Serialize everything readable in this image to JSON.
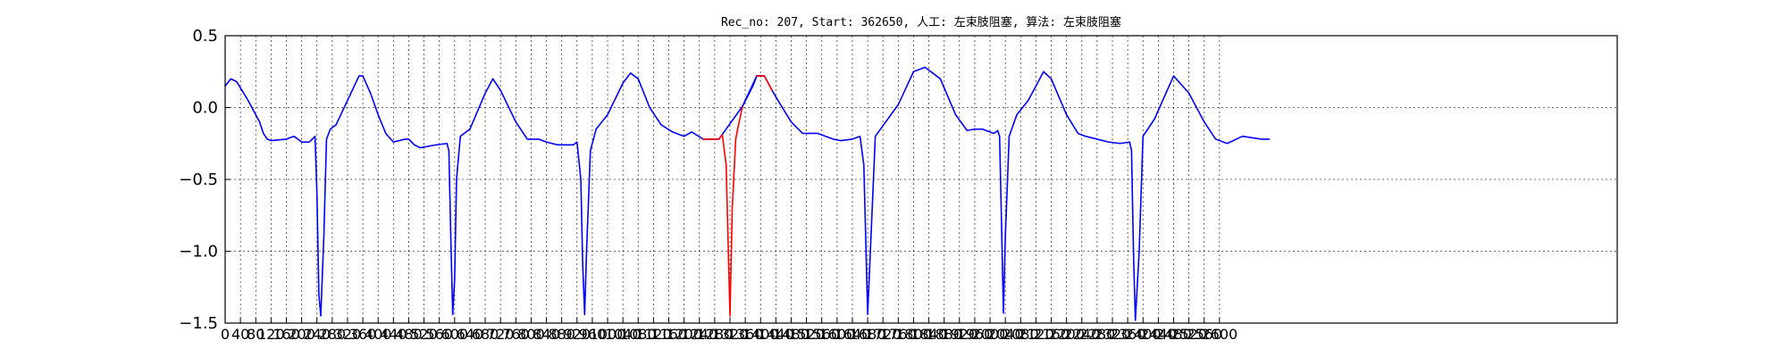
{
  "chart_data": {
    "type": "line",
    "title": "Rec_no: 207, Start: 362650, 人工: 左束肢阻塞, 算法: 左束肢阻塞",
    "xlabel": "",
    "ylabel": "",
    "xlim": [
      0,
      3640
    ],
    "ylim": [
      -1.5,
      0.5
    ],
    "y_ticks": [
      0.5,
      0.0,
      -0.5,
      -1.0,
      -1.5
    ],
    "y_tick_labels": [
      "0.5",
      "0.0",
      "−0.5",
      "−1.0",
      "−1.5"
    ],
    "x_ticks": [
      0,
      40,
      80,
      120,
      160,
      200,
      240,
      280,
      320,
      360,
      400,
      440,
      480,
      520,
      560,
      600,
      640,
      680,
      720,
      760,
      800,
      840,
      880,
      920,
      960,
      1000,
      1040,
      1080,
      1120,
      1160,
      1200,
      1240,
      1280,
      1320,
      1360,
      1400,
      1440,
      1480,
      1520,
      1560,
      1600,
      1640,
      1680,
      1720,
      1760,
      1800,
      1840,
      1880,
      1920,
      1960,
      2000,
      2040,
      2080,
      2120,
      2160,
      2200,
      2240,
      2280,
      2320,
      2360,
      2400,
      2440,
      2480,
      2520,
      2560,
      2600
    ],
    "x_tick_labels": [
      "0",
      "40",
      "80",
      "120",
      "160",
      "200",
      "240",
      "280",
      "320",
      "360",
      "400",
      "440",
      "480",
      "520",
      "560",
      "600",
      "640",
      "680",
      "720",
      "760",
      "800",
      "840",
      "880",
      "920",
      "960",
      "1000",
      "1040",
      "1080",
      "1120",
      "1160",
      "1200",
      "1240",
      "1280",
      "1320",
      "1360",
      "1400",
      "1440",
      "1480",
      "1520",
      "1560",
      "1600",
      "1640",
      "1680",
      "1720",
      "1760",
      "1800",
      "1840",
      "1880",
      "1920",
      "1960",
      "2000",
      "2040",
      "2080",
      "2120",
      "2160",
      "2200",
      "2240",
      "2280",
      "2320",
      "2360",
      "2400",
      "2440",
      "2480",
      "2520",
      "2560",
      "2600"
    ],
    "grid": true,
    "series": [
      {
        "color": "#0000ff",
        "x": [
          0,
          15,
          30,
          60,
          90,
          100,
          110,
          120,
          160,
          180,
          200,
          220,
          235,
          240,
          245,
          250,
          258,
          265,
          275,
          290,
          320,
          350,
          360,
          380,
          400,
          420,
          440,
          470,
          480,
          495,
          510,
          550,
          580,
          585,
          590,
          595,
          600,
          605,
          615,
          640,
          680,
          700,
          720,
          760,
          790,
          820,
          840,
          870,
          910,
          920,
          930,
          935,
          940,
          945,
          955,
          970,
          1000,
          1040,
          1060,
          1080,
          1110,
          1140,
          1170,
          1200,
          1220,
          1250,
          1270,
          1291,
          1353,
          1390,
          1410,
          1430,
          1450,
          1480,
          1510,
          1550,
          1570,
          1590,
          1610,
          1640,
          1660,
          1670,
          1680,
          1700,
          1760,
          1800,
          1830,
          1870,
          1910,
          1940,
          1960,
          1980,
          2010,
          2020,
          2025,
          2030,
          2035,
          2040,
          2050,
          2070,
          2100,
          2140,
          2160,
          2200,
          2230,
          2250,
          2280,
          2310,
          2340,
          2365,
          2370,
          2375,
          2380,
          2390,
          2400,
          2430,
          2480,
          2520,
          2560,
          2590,
          2620,
          2660,
          2710,
          2730
        ],
        "y": [
          0.15,
          0.2,
          0.18,
          0.05,
          -0.1,
          -0.18,
          -0.22,
          -0.23,
          -0.22,
          -0.2,
          -0.24,
          -0.24,
          -0.2,
          -0.6,
          -1.3,
          -1.45,
          -0.9,
          -0.22,
          -0.15,
          -0.12,
          0.05,
          0.22,
          0.22,
          0.1,
          -0.05,
          -0.18,
          -0.24,
          -0.22,
          -0.22,
          -0.26,
          -0.28,
          -0.26,
          -0.25,
          -0.3,
          -0.9,
          -1.44,
          -1.2,
          -0.5,
          -0.2,
          -0.15,
          0.1,
          0.2,
          0.12,
          -0.1,
          -0.22,
          -0.22,
          -0.24,
          -0.26,
          -0.26,
          -0.24,
          -0.5,
          -1.1,
          -1.44,
          -1.0,
          -0.3,
          -0.15,
          -0.05,
          0.17,
          0.24,
          0.2,
          0.0,
          -0.12,
          -0.17,
          -0.2,
          -0.17,
          -0.22,
          -0.22,
          -0.22,
          0.01,
          0.22,
          0.22,
          0.12,
          0.03,
          -0.1,
          -0.18,
          -0.18,
          -0.2,
          -0.22,
          -0.23,
          -0.22,
          -0.2,
          -0.4,
          -1.44,
          -0.2,
          0.02,
          0.25,
          0.28,
          0.2,
          -0.05,
          -0.16,
          -0.15,
          -0.15,
          -0.18,
          -0.16,
          -0.2,
          -0.8,
          -1.43,
          -0.9,
          -0.2,
          -0.05,
          0.05,
          0.25,
          0.2,
          -0.05,
          -0.18,
          -0.2,
          -0.22,
          -0.24,
          -0.25,
          -0.24,
          -0.3,
          -1.0,
          -1.48,
          -1.0,
          -0.2,
          -0.08,
          0.22,
          0.1,
          -0.1,
          -0.22,
          -0.25,
          -0.2,
          -0.22,
          -0.22
        ]
      },
      {
        "color": "#ff0000",
        "x": [
          1250,
          1270,
          1291,
          1300,
          1310,
          1320,
          1326,
          1335,
          1340,
          1353
        ],
        "y": [
          -0.22,
          -0.22,
          -0.22,
          -0.19,
          -0.4,
          -1.45,
          -0.7,
          -0.22,
          -0.15,
          0.01
        ]
      },
      {
        "color": "#0000ff",
        "x": [
          1353,
          1380,
          1390,
          1410
        ],
        "y": [
          0.01,
          0.15,
          0.22,
          0.22
        ]
      },
      {
        "color": "#ff0000",
        "x": [
          1390,
          1410,
          1430
        ],
        "y": [
          0.22,
          0.22,
          0.12
        ]
      }
    ]
  }
}
